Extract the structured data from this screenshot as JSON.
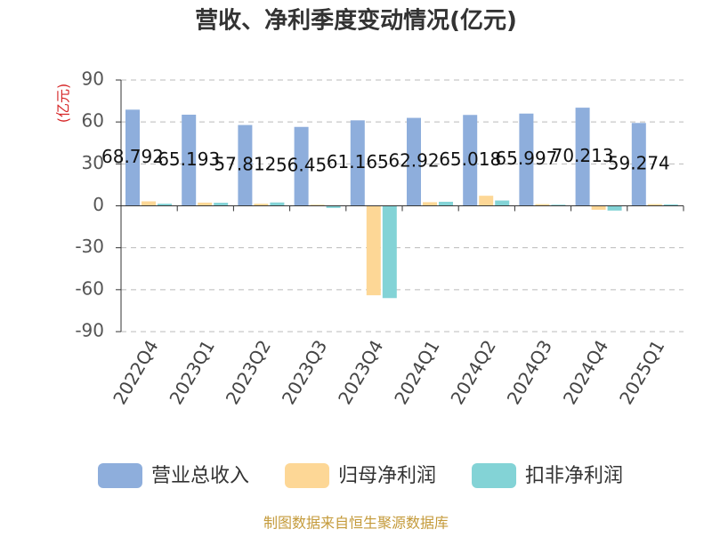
{
  "chart_data": {
    "type": "bar",
    "title": "营收、净利季度变动情况(亿元)",
    "y_label": "(亿元)",
    "categories": [
      "2022Q4",
      "2023Q1",
      "2023Q2",
      "2023Q3",
      "2023Q4",
      "2024Q1",
      "2024Q2",
      "2024Q3",
      "2024Q4",
      "2025Q1"
    ],
    "series": [
      {
        "name": "营业总收入",
        "color": "#8eaedc",
        "show_labels": true,
        "values": [
          68.792,
          65.193,
          57.812,
          56.45,
          61.165,
          62.92,
          65.018,
          65.997,
          70.213,
          59.274
        ]
      },
      {
        "name": "归母净利润",
        "color": "#fdd796",
        "values": [
          3.2,
          2.3,
          1.5,
          0.8,
          -64,
          2.6,
          7.2,
          1.2,
          -2.8,
          1.2
        ]
      },
      {
        "name": "扣非净利润",
        "color": "#83d3d6",
        "values": [
          1.5,
          2.2,
          2.4,
          -1.5,
          -66,
          2.9,
          3.8,
          0.8,
          -3.4,
          1.0
        ]
      }
    ],
    "ylim": [
      -90,
      90
    ],
    "yticks": [
      -90,
      -60,
      -30,
      0,
      30,
      60,
      90
    ],
    "grid": true,
    "source": "制图数据来自恒生聚源数据库"
  }
}
